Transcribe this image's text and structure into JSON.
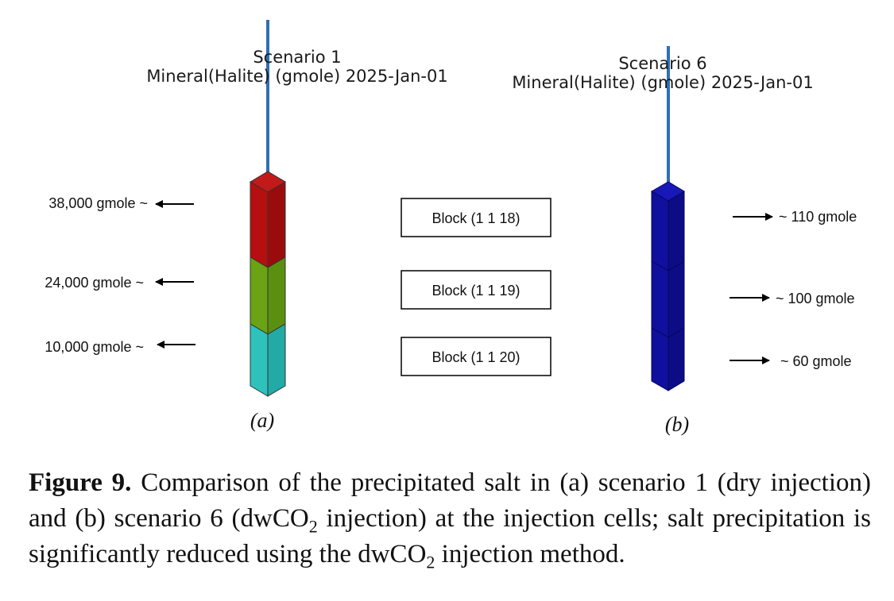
{
  "panel_a": {
    "title": "Scenario 1",
    "subtitle": "Mineral(Halite) (gmole)  2025-Jan-01",
    "panel_label": "(a)",
    "callouts": [
      "38,000 gmole ~",
      "24,000 gmole ~",
      "10,000 gmole ~"
    ],
    "colors": {
      "top": "#b50f0f",
      "middle": "#6aa314",
      "bottom": "#2ec2bd",
      "well": "#2f6fb5"
    }
  },
  "panel_b": {
    "title": "Scenario 6",
    "subtitle": "Mineral(Halite) (gmole)  2025-Jan-01",
    "panel_label": "(b)",
    "callouts": [
      "~ 110 gmole",
      "~ 100 gmole",
      "~ 60 gmole"
    ],
    "colors": {
      "column": "#10109e",
      "well": "#2f6fb5"
    }
  },
  "blocks": [
    "Block (1 1 18)",
    "Block (1 1 19)",
    "Block (1 1 20)"
  ],
  "caption": {
    "figure_number": "Figure 9.",
    "text_1": " Comparison of the precipitated salt in (a) scenario 1 (dry injection) and (b) scenario 6 (dwCO",
    "sub_1": "2",
    "text_2": " injection) at the injection cells; salt precipitation is significantly reduced using the dwCO",
    "sub_2": "2",
    "text_3": " injection method."
  }
}
